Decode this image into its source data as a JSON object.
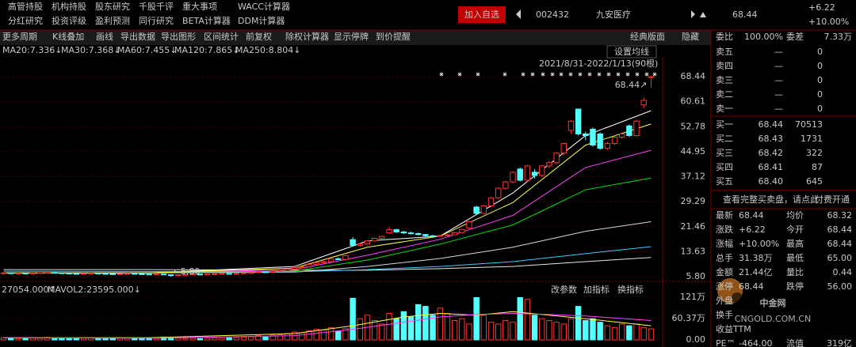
{
  "header": {
    "menu_row1": [
      "高管持股",
      "机构持股",
      "股东研究",
      "千股千评",
      "重大事项",
      "WACC计算器"
    ],
    "menu_row2": [
      "分红研究",
      "投资评级",
      "盈利预测",
      "同行研究",
      "BETA计算器",
      "DDM计算器"
    ],
    "add_watchlist": "加入自选",
    "code": "002432",
    "name": "九安医疗",
    "price": "68.44",
    "change": "+6.22",
    "change_pct": "+10.00%"
  },
  "toolbar": {
    "left": [
      "更多周期",
      "K线叠加",
      "画线",
      "导出数据",
      "导出图形",
      "区间统计",
      "前复权",
      "除权计算器",
      "显示停牌",
      "到价提醒"
    ],
    "right": [
      "经典版面",
      "隐藏"
    ]
  },
  "chart_data": [
    {
      "type": "candlestick",
      "setting_button": "设置均线",
      "range_label": "2021/8/31-2022/1/13(90根)",
      "high_label": "68.44↗",
      "low_label": "←5.80",
      "ylim": [
        5.8,
        68.44
      ],
      "yticks": [
        {
          "value": 5.8,
          "label": "5.80"
        },
        13.63,
        21.46,
        29.29,
        37.12,
        44.95,
        52.78,
        60.61,
        68.44
      ],
      "ohlc": [
        [
          6.9,
          7.1,
          6.8,
          7.0
        ],
        [
          7.0,
          7.1,
          6.9,
          6.9
        ],
        [
          6.9,
          7.0,
          6.8,
          6.9
        ],
        [
          6.9,
          6.95,
          6.7,
          6.8
        ],
        [
          6.8,
          7.0,
          6.75,
          6.95
        ],
        [
          6.95,
          7.1,
          6.9,
          7.05
        ],
        [
          7.05,
          7.2,
          7.0,
          7.1
        ],
        [
          7.1,
          7.15,
          6.95,
          7.0
        ],
        [
          7.0,
          7.05,
          6.85,
          6.9
        ],
        [
          6.9,
          6.95,
          6.75,
          6.8
        ],
        [
          6.8,
          6.85,
          6.65,
          6.7
        ],
        [
          6.7,
          6.85,
          6.65,
          6.8
        ],
        [
          6.8,
          6.95,
          6.75,
          6.9
        ],
        [
          6.9,
          6.95,
          6.75,
          6.8
        ],
        [
          6.8,
          6.85,
          6.65,
          6.7
        ],
        [
          6.7,
          6.75,
          6.55,
          6.6
        ],
        [
          6.6,
          6.75,
          6.55,
          6.7
        ],
        [
          6.7,
          6.85,
          6.65,
          6.8
        ],
        [
          6.8,
          6.85,
          6.65,
          6.7
        ],
        [
          6.7,
          6.75,
          6.5,
          6.6
        ],
        [
          6.6,
          6.65,
          6.4,
          6.5
        ],
        [
          6.5,
          6.65,
          6.45,
          6.6
        ],
        [
          6.6,
          6.62,
          6.3,
          6.4
        ],
        [
          6.4,
          6.45,
          5.8,
          6.3
        ],
        [
          6.3,
          6.45,
          6.25,
          6.4
        ],
        [
          6.4,
          6.55,
          6.35,
          6.5
        ],
        [
          6.5,
          6.65,
          6.45,
          6.6
        ],
        [
          6.6,
          6.65,
          6.45,
          6.5
        ],
        [
          6.5,
          6.65,
          6.45,
          6.6
        ],
        [
          6.6,
          6.75,
          6.55,
          6.7
        ],
        [
          6.7,
          6.85,
          6.65,
          6.8
        ],
        [
          6.8,
          6.85,
          6.65,
          6.7
        ],
        [
          6.7,
          6.85,
          6.65,
          6.8
        ],
        [
          6.8,
          7.05,
          6.75,
          7.0
        ],
        [
          7.0,
          7.15,
          6.95,
          7.1
        ],
        [
          7.1,
          7.35,
          7.05,
          7.3
        ],
        [
          7.3,
          7.35,
          7.1,
          7.2
        ],
        [
          7.2,
          7.55,
          7.15,
          7.5
        ],
        [
          7.5,
          7.85,
          7.45,
          7.8
        ],
        [
          7.8,
          8.3,
          7.75,
          8.2
        ],
        [
          8.2,
          8.7,
          8.1,
          8.6
        ],
        [
          8.6,
          9.1,
          8.5,
          8.9
        ],
        [
          8.9,
          9.7,
          8.8,
          9.6
        ],
        [
          9.6,
          10.3,
          9.5,
          10.2
        ],
        [
          10.2,
          10.8,
          10.0,
          10.5
        ],
        [
          10.5,
          11.5,
          10.4,
          11.4
        ],
        [
          11.4,
          11.8,
          11.0,
          11.2
        ],
        [
          11.2,
          12.5,
          11.1,
          12.4
        ],
        [
          17.4,
          18.2,
          15.2,
          15.6
        ],
        [
          15.6,
          16.4,
          15.3,
          16.0
        ],
        [
          16.0,
          17.2,
          15.8,
          17.0
        ],
        [
          17.0,
          18.0,
          16.8,
          17.8
        ],
        [
          17.8,
          18.6,
          17.5,
          18.4
        ],
        [
          19.5,
          21.5,
          19.2,
          20.5
        ],
        [
          20.5,
          20.8,
          19.5,
          19.8
        ],
        [
          19.8,
          20.2,
          19.2,
          19.5
        ],
        [
          19.5,
          19.9,
          19.0,
          19.3
        ],
        [
          19.3,
          19.6,
          18.7,
          19.0
        ],
        [
          19.0,
          19.2,
          18.3,
          18.6
        ],
        [
          18.6,
          18.9,
          18.2,
          18.5
        ],
        [
          18.5,
          18.9,
          18.3,
          18.7
        ],
        [
          18.7,
          19.1,
          18.5,
          18.9
        ],
        [
          18.9,
          19.8,
          18.8,
          19.6
        ],
        [
          19.6,
          20.8,
          19.4,
          20.6
        ],
        [
          21.0,
          23.2,
          20.8,
          23.0
        ],
        [
          27.6,
          28.0,
          25.2,
          25.6
        ],
        [
          25.6,
          28.3,
          25.4,
          28.0
        ],
        [
          28.0,
          30.8,
          27.6,
          30.5
        ],
        [
          30.5,
          33.8,
          30.2,
          33.5
        ],
        [
          33.5,
          35.8,
          33.0,
          35.5
        ],
        [
          35.5,
          38.8,
          35.0,
          38.5
        ],
        [
          39.5,
          40.0,
          35.6,
          36.0
        ],
        [
          36.0,
          40.8,
          35.5,
          40.5
        ],
        [
          38.5,
          39.5,
          36.5,
          37.5
        ],
        [
          37.5,
          40.8,
          37.0,
          40.5
        ],
        [
          40.5,
          42.0,
          39.8,
          41.5
        ],
        [
          41.5,
          44.8,
          41.0,
          44.5
        ],
        [
          44.5,
          47.8,
          43.8,
          47.5
        ],
        [
          51.6,
          54.8,
          50.5,
          54.5
        ],
        [
          58.3,
          58.3,
          50.0,
          50.5
        ],
        [
          50.5,
          51.2,
          48.5,
          50.0
        ],
        [
          52.0,
          52.5,
          46.5,
          47.0
        ],
        [
          50.5,
          51.0,
          45.5,
          46.0
        ],
        [
          46.0,
          48.0,
          45.5,
          47.5
        ],
        [
          47.5,
          50.0,
          47.0,
          49.5
        ],
        [
          49.5,
          51.0,
          49.0,
          50.5
        ],
        [
          53.0,
          53.5,
          49.5,
          50.0
        ],
        [
          50.0,
          55.0,
          49.8,
          54.5
        ],
        [
          59.6,
          61.9,
          58.5,
          61.0
        ],
        [
          68.44,
          68.44,
          65.0,
          68.44
        ]
      ],
      "series": [
        {
          "name": "MA20:7.336↓",
          "color": "#ff40ff",
          "x": [
            0,
            20,
            40,
            50,
            60,
            70,
            80,
            89
          ],
          "values": [
            7,
            7,
            8,
            12.5,
            17.5,
            25,
            40,
            45.4
          ]
        },
        {
          "name": "MA30:7.368↓",
          "color": "#00e000",
          "x": [
            0,
            20,
            40,
            50,
            60,
            70,
            80,
            89
          ],
          "values": [
            7,
            7,
            7.5,
            11,
            16,
            22,
            33,
            36.7
          ]
        },
        {
          "name": "MA60:7.455↓",
          "color": "#d8d8d8",
          "x": [
            0,
            20,
            40,
            50,
            60,
            70,
            80,
            89
          ],
          "values": [
            7,
            7,
            7.2,
            9,
            11.5,
            15,
            20,
            23
          ]
        },
        {
          "name": "MA120:7.865↓",
          "color": "#40c8ff",
          "x": [
            0,
            20,
            40,
            50,
            60,
            70,
            80,
            89
          ],
          "values": [
            7.5,
            7.4,
            7.3,
            8,
            9,
            10.5,
            13,
            15.2
          ]
        },
        {
          "name": "MA250:8.804↓",
          "color": "#ffff40",
          "x": [
            0,
            20,
            40,
            50,
            60,
            70,
            80,
            89
          ],
          "values": [
            7,
            7,
            8.5,
            15,
            18.5,
            29,
            47,
            53.6
          ]
        }
      ],
      "extra_lines": [
        {
          "color": "#ffffff",
          "x": [
            0,
            20,
            40,
            50,
            60,
            70,
            80,
            89
          ],
          "values": [
            7,
            7,
            9,
            17,
            18.5,
            32,
            50,
            57.8
          ]
        },
        {
          "color": "#e8e8e8",
          "x": [
            0,
            20,
            40,
            50,
            60,
            70,
            80,
            89
          ],
          "values": [
            8,
            8,
            7.8,
            7.8,
            8.3,
            9,
            10.5,
            11.8
          ]
        }
      ]
    },
    {
      "type": "volume",
      "legend": [
        "27054.000↑",
        "MAVOL2:23595.000↓"
      ],
      "buttons": [
        "改参数",
        "加指标",
        "换指标"
      ],
      "ylim": [
        0,
        121
      ],
      "yticks": [
        {
          "value": 0,
          "label": "0.00"
        },
        {
          "value": 60.37,
          "label": "60.37万"
        },
        {
          "value": 121,
          "label": "121万"
        }
      ],
      "values": [
        6,
        5,
        4,
        5,
        6,
        5,
        7,
        5,
        4,
        5,
        4,
        5,
        6,
        4,
        5,
        4,
        5,
        5,
        4,
        5,
        6,
        4,
        8,
        6,
        5,
        4,
        5,
        4,
        5,
        6,
        5,
        6,
        7,
        8,
        9,
        12,
        8,
        14,
        15,
        18,
        22,
        20,
        26,
        30,
        28,
        35,
        25,
        32,
        118,
        60,
        70,
        55,
        45,
        75,
        60,
        80,
        65,
        100,
        95,
        70,
        90,
        75,
        55,
        60,
        45,
        120,
        70,
        50,
        45,
        55,
        50,
        120,
        115,
        70,
        60,
        55,
        50,
        45,
        60,
        95,
        55,
        60,
        50,
        40,
        35,
        45,
        40,
        45,
        35,
        31.38
      ],
      "lines": [
        {
          "color": "#ffff40",
          "x": [
            0,
            20,
            40,
            48,
            55,
            60,
            65,
            70,
            75,
            80,
            89
          ],
          "values": [
            6,
            6,
            18,
            40,
            65,
            75,
            70,
            80,
            70,
            60,
            40
          ]
        },
        {
          "color": "#ff40ff",
          "x": [
            0,
            20,
            40,
            48,
            55,
            60,
            65,
            70,
            75,
            80,
            89
          ],
          "values": [
            6,
            5,
            12,
            30,
            50,
            65,
            72,
            75,
            72,
            68,
            55
          ]
        }
      ]
    }
  ],
  "quote_panel": {
    "ratio": [
      "委比",
      "100.00%",
      "委差",
      "7.33万"
    ],
    "asks": [
      [
        "卖五",
        "—",
        "0"
      ],
      [
        "卖四",
        "—",
        "0"
      ],
      [
        "卖三",
        "—",
        "0"
      ],
      [
        "卖二",
        "—",
        "0"
      ],
      [
        "卖一",
        "—",
        "0"
      ]
    ],
    "bids": [
      [
        "买一",
        "68.44",
        "70513"
      ],
      [
        "买二",
        "68.43",
        "1731"
      ],
      [
        "买三",
        "68.42",
        "322"
      ],
      [
        "买四",
        "68.41",
        "87"
      ],
      [
        "买五",
        "68.40",
        "645"
      ]
    ],
    "more": "查看完整买卖盘，请点此",
    "pay": "付费开通",
    "stats": [
      [
        "最新",
        "68.44",
        "均价",
        "68.32"
      ],
      [
        "涨跌",
        "+6.22",
        "今开",
        "68.44"
      ],
      [
        "涨幅",
        "+10.00%",
        "最高",
        "68.44"
      ],
      [
        "总手",
        "31.38万",
        "最低",
        "65.00"
      ],
      [
        "金额",
        "21.44亿",
        "量比",
        "0.44"
      ],
      [
        "涨停",
        "68.44",
        "跌停",
        "56.00"
      ],
      [
        "外盘"
      ],
      [
        "换手"
      ],
      [
        "收益TTM"
      ],
      [
        "PE™",
        "-464.00",
        "流值",
        "319亿"
      ]
    ]
  },
  "watermark": {
    "name": "中金网",
    "url": "CNGOLD.COM.CN"
  }
}
